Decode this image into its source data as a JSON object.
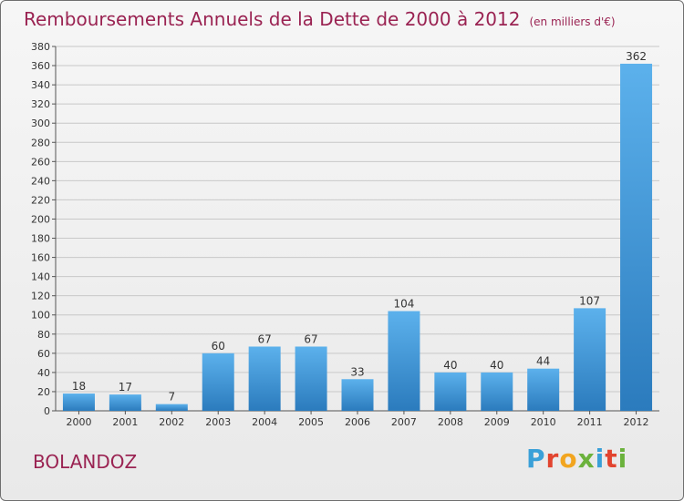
{
  "title": "Remboursements Annuels de la Dette de 2000 à 2012",
  "unit": "(en milliers d'€)",
  "commune": "BOLANDOZ",
  "logo": {
    "text": "Proxiti",
    "letter_colors": [
      "#3aa0d8",
      "#e2442f",
      "#f2a51f",
      "#6bb23c",
      "#3aa0d8",
      "#e2442f",
      "#6bb23c"
    ]
  },
  "colors": {
    "bar_light": "#5cb1ec",
    "bar_dark": "#2b7bbd",
    "title": "#9a2352",
    "grid": "#c8c8c8"
  },
  "chart_data": {
    "type": "bar",
    "categories": [
      "2000",
      "2001",
      "2002",
      "2003",
      "2004",
      "2005",
      "2006",
      "2007",
      "2008",
      "2009",
      "2010",
      "2011",
      "2012"
    ],
    "values": [
      18,
      17,
      7,
      60,
      67,
      67,
      33,
      104,
      40,
      40,
      44,
      107,
      362
    ],
    "title": "Remboursements Annuels de la Dette de 2000 à 2012",
    "ylim": [
      0,
      380
    ],
    "ytick_step": 20,
    "grid": true
  }
}
